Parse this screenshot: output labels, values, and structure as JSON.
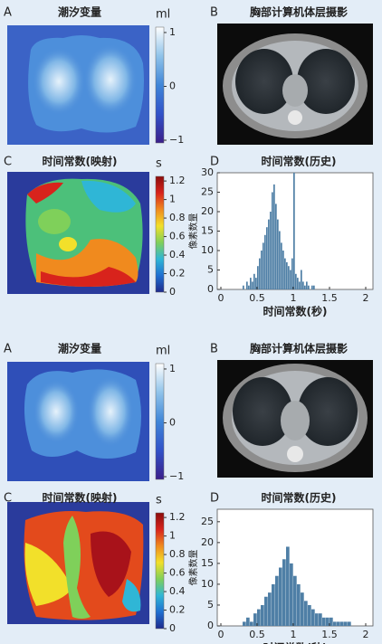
{
  "chart_data": [
    {
      "type": "heatmap",
      "label": "A",
      "title": "潮汐变量",
      "unit": "ml",
      "zlim": [
        -1.05,
        1.1
      ],
      "zticks": [
        1,
        0,
        {
          "value": -1,
          "label": "−1"
        }
      ],
      "colormap": [
        "#3b1f8a",
        "#3152c9",
        "#3f86d8",
        "#8fc3ea",
        "#ffffff"
      ]
    },
    {
      "type": "image",
      "label": "B",
      "title": "胸部计算机体层摄影"
    },
    {
      "type": "heatmap",
      "label": "C",
      "title": "时间常数(映射)",
      "unit": "s",
      "zlim": [
        0,
        1.25
      ],
      "zticks": [
        1.2,
        1,
        0.8,
        0.6,
        0.4,
        0.2,
        0
      ],
      "colormap": [
        "#1e2a8c",
        "#1f6fd1",
        "#2fb6d6",
        "#7fd05a",
        "#f2e02a",
        "#f08a1e",
        "#d8231c",
        "#8b0d0d"
      ]
    },
    {
      "type": "histogram",
      "label": "D",
      "title": "时间常数(历史)",
      "y_label": "像素数量",
      "x_label": "时间常数(秒)",
      "color": "#4f7fa6",
      "bins": [
        0.3,
        0.325,
        0.35,
        0.375,
        0.4,
        0.425,
        0.45,
        0.475,
        0.5,
        0.525,
        0.55,
        0.575,
        0.6,
        0.625,
        0.65,
        0.675,
        0.7,
        0.725,
        0.75,
        0.775,
        0.8,
        0.825,
        0.85,
        0.875,
        0.9,
        0.925,
        0.95,
        0.975,
        1,
        1.025,
        1.05,
        1.075,
        1.1,
        1.125,
        1.15,
        1.175,
        1.2,
        1.225,
        1.25,
        1.275,
        1.3
      ],
      "values": [
        1,
        0,
        2,
        1,
        3,
        2,
        4,
        3,
        6,
        8,
        10,
        12,
        14,
        16,
        18,
        20,
        25,
        27,
        22,
        18,
        15,
        12,
        10,
        8,
        7,
        6,
        5,
        8,
        30,
        4,
        3,
        2,
        5,
        2,
        1,
        2,
        1,
        0,
        1,
        1
      ],
      "xlim": [
        -0.05,
        2.1
      ],
      "xticks": [
        0,
        0.5,
        1,
        1.5,
        2
      ],
      "ylim": [
        0,
        30
      ],
      "yticks": [
        0,
        5,
        10,
        15,
        20,
        25,
        30
      ]
    },
    {
      "type": "heatmap",
      "label": "A",
      "title": "潮汐变量",
      "unit": "ml",
      "zlim": [
        -1.05,
        1.1
      ],
      "zticks": [
        1,
        0,
        {
          "value": -1,
          "label": "−1"
        }
      ],
      "colormap": [
        "#3b1f8a",
        "#3152c9",
        "#3f86d8",
        "#8fc3ea",
        "#ffffff"
      ]
    },
    {
      "type": "image",
      "label": "B",
      "title": "胸部计算机体层摄影"
    },
    {
      "type": "heatmap",
      "label": "C",
      "title": "时间常数(映射)",
      "unit": "s",
      "zlim": [
        0,
        1.25
      ],
      "zticks": [
        1.2,
        1,
        0.8,
        0.6,
        0.4,
        0.2,
        0
      ],
      "colormap": [
        "#1e2a8c",
        "#1f6fd1",
        "#2fb6d6",
        "#7fd05a",
        "#f2e02a",
        "#f08a1e",
        "#d8231c",
        "#8b0d0d"
      ]
    },
    {
      "type": "histogram",
      "label": "D",
      "title": "时间常数(历史)",
      "y_label": "像素数量",
      "x_label": "时间常数(秒)",
      "color": "#4f7fa6",
      "bins": [
        0.3,
        0.35,
        0.4,
        0.45,
        0.5,
        0.55,
        0.6,
        0.65,
        0.7,
        0.75,
        0.8,
        0.85,
        0.9,
        0.95,
        1,
        1.05,
        1.1,
        1.15,
        1.2,
        1.25,
        1.3,
        1.35,
        1.4,
        1.45,
        1.5,
        1.55,
        1.6,
        1.65,
        1.7,
        1.75,
        1.8
      ],
      "values": [
        1,
        2,
        1,
        3,
        4,
        5,
        7,
        8,
        10,
        12,
        14,
        16,
        19,
        15,
        12,
        10,
        8,
        6,
        5,
        4,
        3,
        3,
        2,
        2,
        2,
        1,
        1,
        1,
        1,
        1
      ],
      "xlim": [
        -0.05,
        2.1
      ],
      "xticks": [
        0,
        0.5,
        1,
        1.5,
        2
      ],
      "ylim": [
        0,
        28
      ],
      "yticks": [
        0,
        5,
        10,
        15,
        20,
        25
      ]
    }
  ]
}
